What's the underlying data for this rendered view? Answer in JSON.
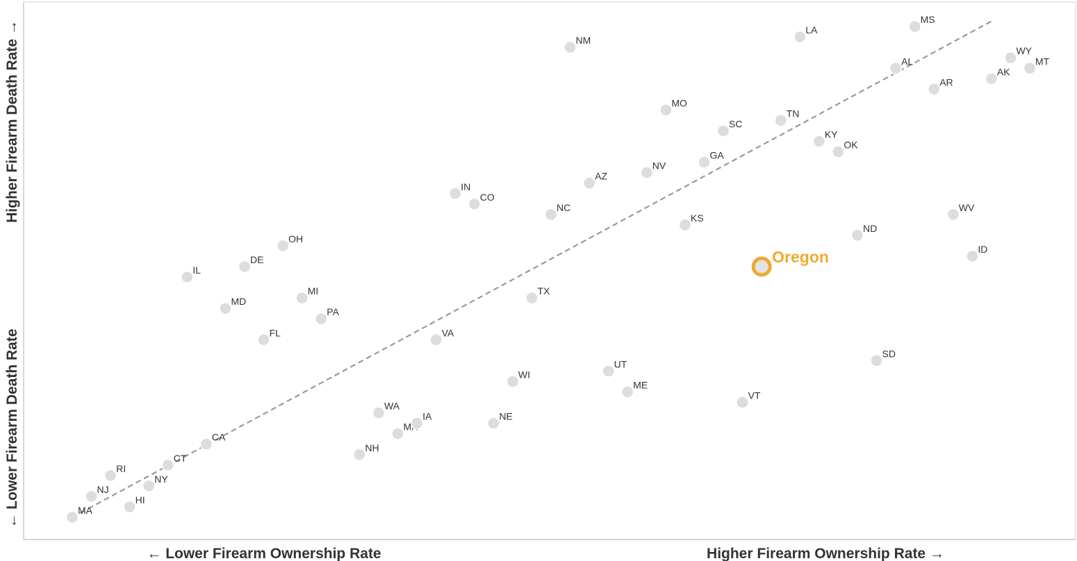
{
  "chart_data": {
    "type": "scatter",
    "title": "",
    "xlabel_low": "← Lower Firearm Ownership Rate",
    "xlabel_high": "Higher Firearm Ownership Rate →",
    "ylabel_low": "← Lower Firearm Death Rate",
    "ylabel_high": "Higher Firearm Death Rate →",
    "xlim": [
      0,
      50
    ],
    "ylim": [
      0,
      50
    ],
    "grid": false,
    "point_color": "#dddddd",
    "highlight_color": "#f0a92e",
    "trend_color": "#999999",
    "trendline": {
      "from": [
        1,
        1
      ],
      "to": [
        49,
        48.5
      ]
    },
    "points": [
      {
        "label": "MA",
        "x": 1,
        "y": 1
      },
      {
        "label": "NJ",
        "x": 2,
        "y": 3
      },
      {
        "label": "RI",
        "x": 3,
        "y": 5
      },
      {
        "label": "HI",
        "x": 4,
        "y": 2
      },
      {
        "label": "NY",
        "x": 5,
        "y": 4
      },
      {
        "label": "CT",
        "x": 6,
        "y": 6
      },
      {
        "label": "CA",
        "x": 8,
        "y": 8
      },
      {
        "label": "IL",
        "x": 7,
        "y": 24
      },
      {
        "label": "MD",
        "x": 9,
        "y": 21
      },
      {
        "label": "DE",
        "x": 10,
        "y": 25
      },
      {
        "label": "FL",
        "x": 11,
        "y": 18
      },
      {
        "label": "OH",
        "x": 12,
        "y": 27
      },
      {
        "label": "MI",
        "x": 13,
        "y": 22
      },
      {
        "label": "PA",
        "x": 14,
        "y": 20
      },
      {
        "label": "NH",
        "x": 16,
        "y": 7
      },
      {
        "label": "WA",
        "x": 17,
        "y": 11
      },
      {
        "label": "MN",
        "x": 18,
        "y": 9
      },
      {
        "label": "IA",
        "x": 19,
        "y": 10
      },
      {
        "label": "VA",
        "x": 20,
        "y": 18
      },
      {
        "label": "IN",
        "x": 21,
        "y": 32
      },
      {
        "label": "CO",
        "x": 22,
        "y": 31
      },
      {
        "label": "NE",
        "x": 23,
        "y": 10
      },
      {
        "label": "WI",
        "x": 24,
        "y": 14
      },
      {
        "label": "TX",
        "x": 25,
        "y": 22
      },
      {
        "label": "NC",
        "x": 26,
        "y": 30
      },
      {
        "label": "NM",
        "x": 27,
        "y": 46
      },
      {
        "label": "AZ",
        "x": 28,
        "y": 33
      },
      {
        "label": "UT",
        "x": 29,
        "y": 15
      },
      {
        "label": "ME",
        "x": 30,
        "y": 13
      },
      {
        "label": "NV",
        "x": 31,
        "y": 34
      },
      {
        "label": "MO",
        "x": 32,
        "y": 40
      },
      {
        "label": "KS",
        "x": 33,
        "y": 29
      },
      {
        "label": "GA",
        "x": 34,
        "y": 35
      },
      {
        "label": "SC",
        "x": 35,
        "y": 38
      },
      {
        "label": "VT",
        "x": 36,
        "y": 12
      },
      {
        "label": "TN",
        "x": 38,
        "y": 39
      },
      {
        "label": "LA",
        "x": 39,
        "y": 47
      },
      {
        "label": "KY",
        "x": 40,
        "y": 37
      },
      {
        "label": "OK",
        "x": 41,
        "y": 36
      },
      {
        "label": "ND",
        "x": 42,
        "y": 28
      },
      {
        "label": "SD",
        "x": 43,
        "y": 16
      },
      {
        "label": "AL",
        "x": 44,
        "y": 44
      },
      {
        "label": "MS",
        "x": 45,
        "y": 48
      },
      {
        "label": "AR",
        "x": 46,
        "y": 42
      },
      {
        "label": "WV",
        "x": 47,
        "y": 30
      },
      {
        "label": "ID",
        "x": 48,
        "y": 26
      },
      {
        "label": "AK",
        "x": 49,
        "y": 43
      },
      {
        "label": "WY",
        "x": 50,
        "y": 45
      },
      {
        "label": "MT",
        "x": 51,
        "y": 44
      }
    ],
    "highlight": {
      "label": "Oregon",
      "x": 37,
      "y": 25
    }
  }
}
